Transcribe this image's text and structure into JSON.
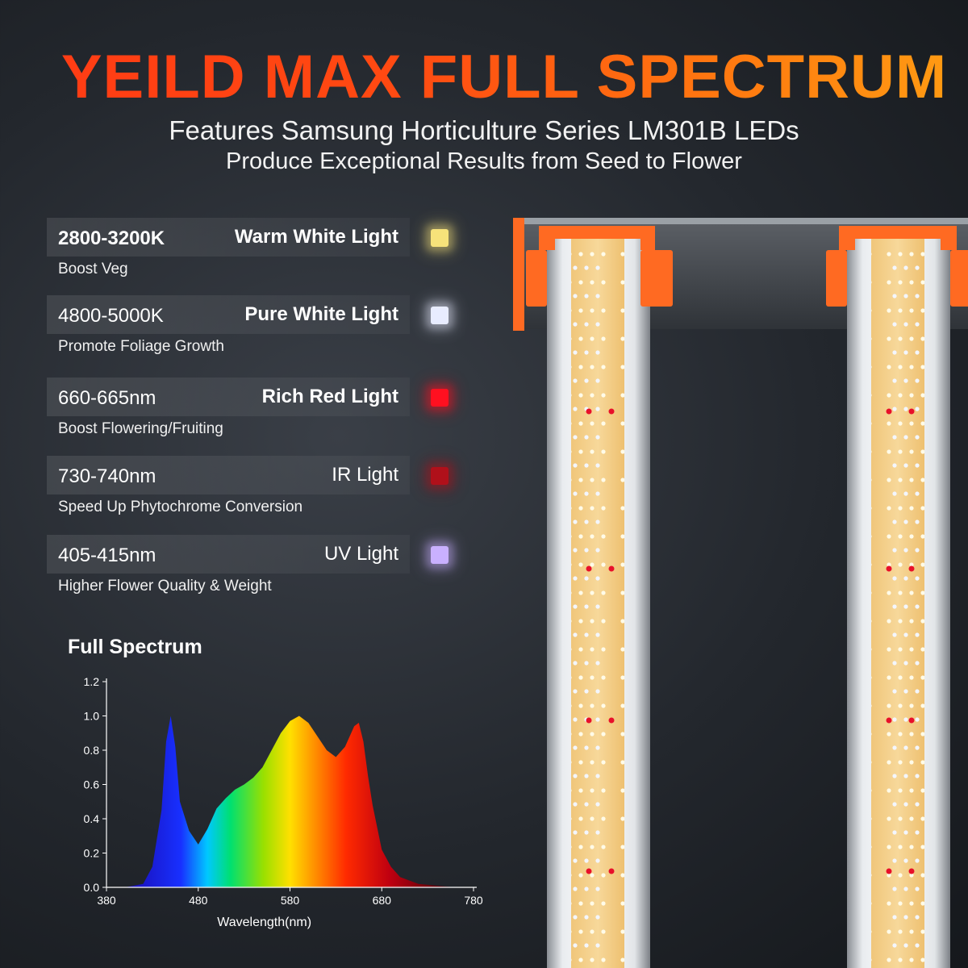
{
  "headline": "YEILD MAX FULL SPECTRUM",
  "subtitle_line1": "Features Samsung Horticulture Series LM301B LEDs",
  "subtitle_line2": "Produce Exceptional Results from Seed to Flower",
  "features": [
    {
      "range": "2800-3200K",
      "light": "Warm White Light",
      "desc": "Boost Veg",
      "color": "#f6e27a"
    },
    {
      "range": "4800-5000K",
      "light": "Pure White Light",
      "desc": "Promote Foliage Growth",
      "color": "#e8ecff"
    },
    {
      "range": "660-665nm",
      "light": "Rich Red Light",
      "desc": "Boost Flowering/Fruiting",
      "color": "#ff1020"
    },
    {
      "range": "730-740nm",
      "light": "IR Light",
      "desc": "Speed Up Phytochrome Conversion",
      "color": "#b0101a"
    },
    {
      "range": "405-415nm",
      "light": "UV Light",
      "desc": "Higher Flower Quality & Weight",
      "color": "#c9b0ff"
    }
  ],
  "spectrum_heading": "Full Spectrum",
  "chart_data": {
    "type": "area",
    "title": "",
    "xlabel": "Wavelength(nm)",
    "ylabel": "",
    "xlim": [
      380,
      780
    ],
    "ylim": [
      0,
      1.2
    ],
    "xticks": [
      380,
      480,
      580,
      680,
      780
    ],
    "yticks": [
      "0.0",
      "0.2",
      "0.4",
      "0.6",
      "0.8",
      "1.0",
      "1.2"
    ],
    "x": [
      400,
      420,
      430,
      440,
      445,
      450,
      455,
      460,
      470,
      480,
      490,
      500,
      510,
      520,
      530,
      540,
      550,
      560,
      570,
      580,
      590,
      600,
      610,
      620,
      630,
      640,
      650,
      655,
      660,
      665,
      670,
      680,
      690,
      700,
      720,
      740,
      760
    ],
    "y": [
      0.0,
      0.02,
      0.12,
      0.45,
      0.85,
      1.0,
      0.82,
      0.5,
      0.33,
      0.25,
      0.34,
      0.46,
      0.52,
      0.57,
      0.6,
      0.64,
      0.7,
      0.8,
      0.9,
      0.97,
      1.0,
      0.96,
      0.88,
      0.8,
      0.76,
      0.82,
      0.94,
      0.96,
      0.85,
      0.65,
      0.48,
      0.22,
      0.12,
      0.06,
      0.02,
      0.01,
      0.0
    ]
  }
}
